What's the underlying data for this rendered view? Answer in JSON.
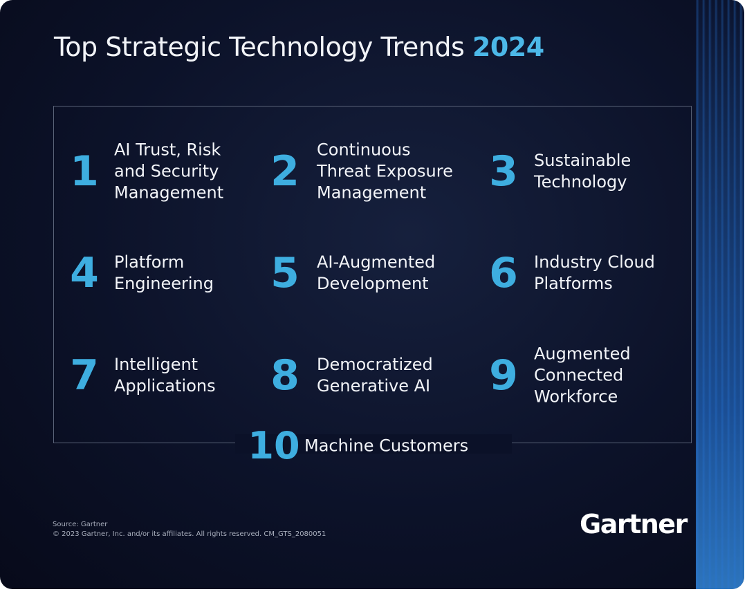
{
  "header": {
    "title": "Top Strategic Technology Trends",
    "year": "2024"
  },
  "trends": [
    {
      "number": 1,
      "lines": [
        "AI Trust, Risk",
        "and Security",
        "Management"
      ]
    },
    {
      "number": 2,
      "lines": [
        "Continuous",
        "Threat Exposure",
        "Management"
      ]
    },
    {
      "number": 3,
      "lines": [
        "Sustainable",
        "Technology"
      ]
    },
    {
      "number": 4,
      "lines": [
        "Platform",
        "Engineering"
      ]
    },
    {
      "number": 5,
      "lines": [
        "AI-Augmented",
        "Development"
      ]
    },
    {
      "number": 6,
      "lines": [
        "Industry Cloud",
        "Platforms"
      ]
    },
    {
      "number": 7,
      "lines": [
        "Intelligent",
        "Applications"
      ]
    },
    {
      "number": 8,
      "lines": [
        "Democratized",
        "Generative AI"
      ]
    },
    {
      "number": 9,
      "lines": [
        "Augmented",
        "Connected",
        "Workforce"
      ]
    },
    {
      "number": 10,
      "lines": [
        "Machine Customers"
      ]
    }
  ],
  "footer": {
    "source": "Source: Gartner",
    "copyright": "© 2023 Gartner, Inc. and/or its affiliates. All rights reserved. CM_GTS_2080051",
    "logo": "Gartner"
  }
}
